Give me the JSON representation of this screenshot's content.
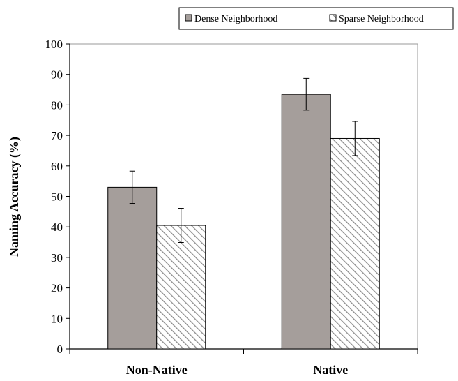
{
  "chart_data": {
    "type": "bar",
    "categories": [
      "Non-Native",
      "Native"
    ],
    "series": [
      {
        "name": "Dense Neighborhood",
        "values": [
          53,
          83.5
        ],
        "errors": [
          5.3,
          5.2
        ],
        "color": "#a59e9b",
        "pattern": "solid"
      },
      {
        "name": "Sparse Neighborhood",
        "values": [
          40.5,
          69
        ],
        "errors": [
          5.6,
          5.6
        ],
        "color": "#ffffff",
        "pattern": "diagonal-hatch"
      }
    ],
    "title": "",
    "xlabel": "",
    "ylabel": "Naming Accuracy (%)",
    "ylim": [
      0,
      100
    ],
    "yticks": [
      "0",
      "10",
      "20",
      "30",
      "40",
      "50",
      "60",
      "70",
      "80",
      "90",
      "100"
    ],
    "grid": false,
    "legend_position": "top-right"
  }
}
